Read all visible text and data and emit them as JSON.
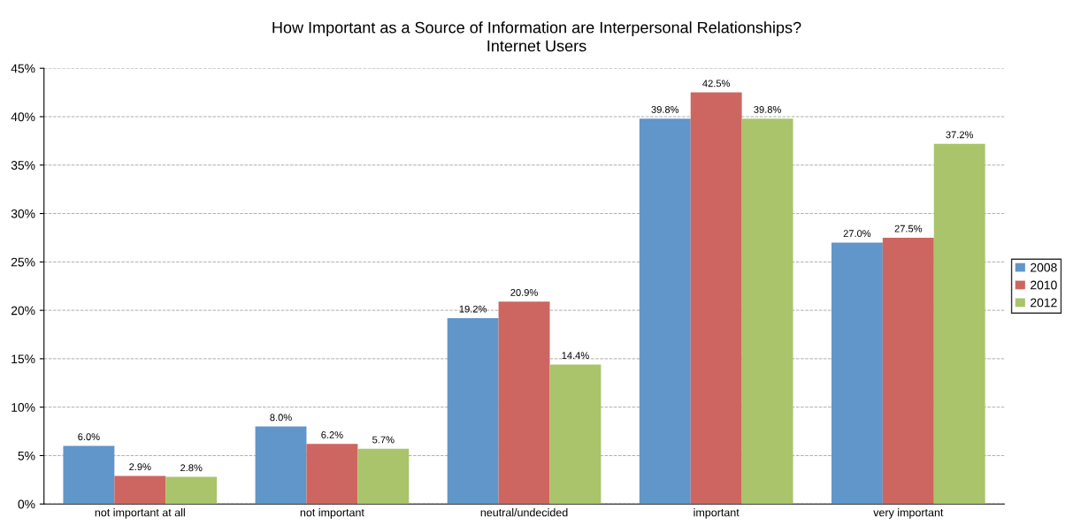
{
  "chart_data": {
    "type": "bar",
    "title": "How Important as a Source of Information are Interpersonal Relationships?",
    "subtitle": "Internet Users",
    "categories": [
      "not important at all",
      "not important",
      "neutral/undecided",
      "important",
      "very important"
    ],
    "series": [
      {
        "name": "2008",
        "color": "#6096c9",
        "values": [
          6.0,
          8.0,
          19.2,
          39.8,
          27.0
        ],
        "value_labels": [
          "6.0%",
          "8.0%",
          "19.2%",
          "39.8%",
          "27.0%"
        ]
      },
      {
        "name": "2010",
        "color": "#cd6660",
        "values": [
          2.9,
          6.2,
          20.9,
          42.5,
          27.5
        ],
        "value_labels": [
          "2.9%",
          "6.2%",
          "20.9%",
          "42.5%",
          "27.5%"
        ]
      },
      {
        "name": "2012",
        "color": "#a9c46a",
        "values": [
          2.8,
          5.7,
          14.4,
          39.8,
          37.2
        ],
        "value_labels": [
          "2.8%",
          "5.7%",
          "14.4%",
          "39.8%",
          "37.2%"
        ]
      }
    ],
    "ylim": [
      0,
      45
    ],
    "yticks": [
      {
        "value": 0,
        "label": "0%"
      },
      {
        "value": 5,
        "label": "5%"
      },
      {
        "value": 10,
        "label": "10%"
      },
      {
        "value": 15,
        "label": "15%"
      },
      {
        "value": 20,
        "label": "20%"
      },
      {
        "value": 25,
        "label": "25%"
      },
      {
        "value": 30,
        "label": "30%"
      },
      {
        "value": 35,
        "label": "35%"
      },
      {
        "value": 40,
        "label": "40%"
      },
      {
        "value": 45,
        "label": "45%"
      }
    ],
    "grid": "y",
    "legend": "right"
  }
}
